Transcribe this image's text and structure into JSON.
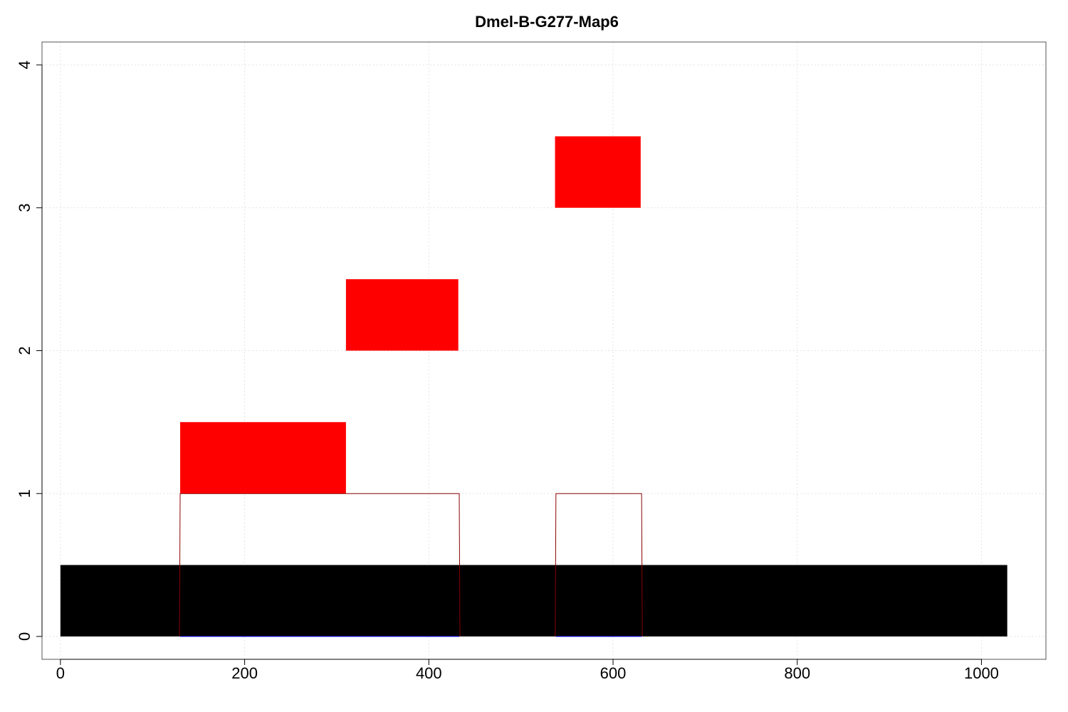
{
  "chart_data": {
    "type": "bar",
    "title": "Dmel-B-G277-Map6",
    "xlabel": "",
    "ylabel": "",
    "xlim": [
      -20,
      1070
    ],
    "ylim": [
      -0.16,
      4.16
    ],
    "x_ticks": [
      0,
      200,
      400,
      600,
      800,
      1000
    ],
    "y_ticks": [
      0,
      1,
      2,
      3,
      4
    ],
    "grid": true,
    "colors": {
      "base": "#000000",
      "blocks": "#ff0000",
      "outline": "#8b0000",
      "baseline": "#0000ff",
      "grid": "#e3e3e3",
      "frame": "#555555"
    },
    "base_segment": {
      "x_start": 0,
      "x_end": 1028,
      "y_bottom": 0,
      "y_top": 0.5
    },
    "red_blocks": [
      {
        "x_start": 130,
        "x_end": 310,
        "y_bottom": 1,
        "y_top": 1.5
      },
      {
        "x_start": 310,
        "x_end": 432,
        "y_bottom": 2,
        "y_top": 2.5
      },
      {
        "x_start": 537,
        "x_end": 630,
        "y_bottom": 3,
        "y_top": 3.5
      }
    ],
    "outline_boxes": [
      {
        "x_start": 130,
        "x_end": 433,
        "y_bottom": 0,
        "y_top": 1
      },
      {
        "x_start": 538,
        "x_end": 631,
        "y_bottom": 0,
        "y_top": 1
      }
    ]
  }
}
